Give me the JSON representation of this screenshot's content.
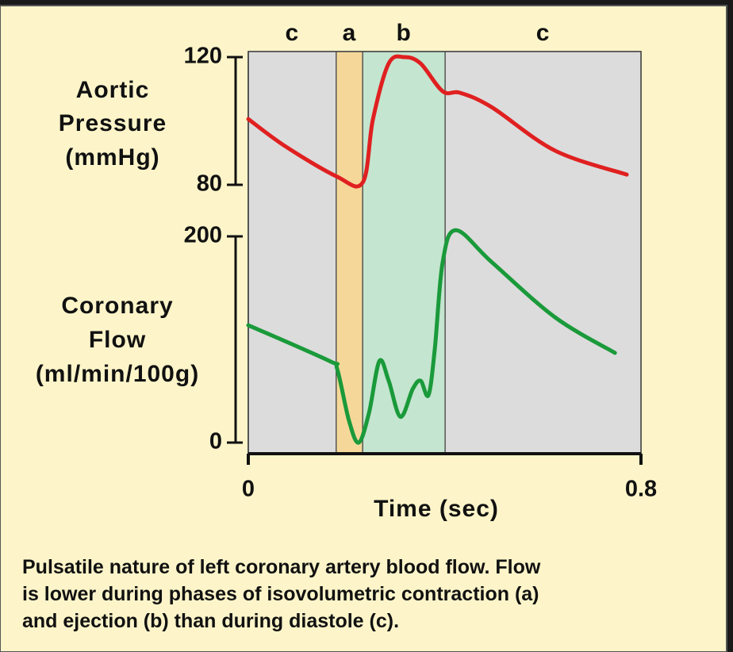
{
  "chart_data": [
    {
      "type": "line",
      "ylabel": [
        "Aortic",
        "Pressure",
        "(mmHg)"
      ],
      "ylim": [
        80,
        120
      ],
      "yticks": [
        80,
        120
      ],
      "xlim": [
        0,
        0.8
      ],
      "phases": [
        {
          "label": "c",
          "start": 0,
          "end": 0.179,
          "color": "#dcdcdc"
        },
        {
          "label": "a",
          "start": 0.179,
          "end": 0.233,
          "color": "#f5d899"
        },
        {
          "label": "b",
          "start": 0.233,
          "end": 0.401,
          "color": "#c4e5cf"
        },
        {
          "label": "c",
          "start": 0.401,
          "end": 0.8,
          "color": "#dcdcdc"
        }
      ],
      "series": [
        {
          "color": "#e02020",
          "x": [
            0,
            0.076,
            0.179,
            0.233,
            0.254,
            0.286,
            0.318,
            0.351,
            0.396,
            0.432,
            0.496,
            0.625,
            0.771
          ],
          "values": [
            100.6,
            92,
            82.7,
            80.7,
            100.6,
            118,
            120,
            118,
            109.3,
            108.8,
            104.3,
            90.7,
            83.2
          ]
        }
      ]
    },
    {
      "type": "line",
      "ylabel": [
        "Coronary",
        "Flow",
        "(ml/min/100g)"
      ],
      "ylim": [
        0,
        200
      ],
      "yticks": [
        0,
        200
      ],
      "xlim": [
        0,
        0.8
      ],
      "xticks": [
        0,
        0.8
      ],
      "xlabel": "Time (sec)",
      "series": [
        {
          "color": "#1a9a3a",
          "x": [
            0,
            0.165,
            0.181,
            0.205,
            0.225,
            0.246,
            0.267,
            0.286,
            0.31,
            0.335,
            0.351,
            0.367,
            0.38,
            0.396,
            0.423,
            0.496,
            0.625,
            0.747
          ],
          "values": [
            113.8,
            79.2,
            71.5,
            21.5,
            0,
            29,
            79,
            60,
            25,
            52,
            60,
            46,
            91,
            175,
            206,
            175,
            121.5,
            87
          ]
        }
      ]
    }
  ],
  "caption": [
    "Pulsatile nature of left coronary artery blood flow.  Flow",
    "is lower during phases of isovolumetric contraction (a)",
    "and ejection (b) than during diastole (c)."
  ]
}
